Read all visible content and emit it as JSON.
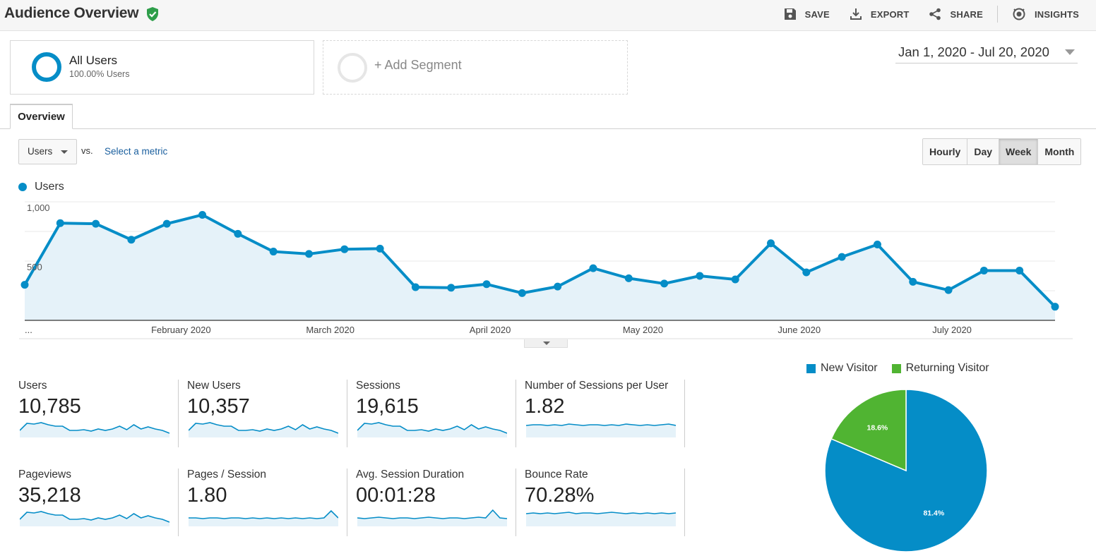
{
  "header": {
    "title": "Audience Overview",
    "actions": {
      "save": "SAVE",
      "export": "EXPORT",
      "share": "SHARE",
      "insights": "INSIGHTS"
    }
  },
  "segments": {
    "all_users": {
      "name": "All Users",
      "sub": "100.00% Users"
    },
    "add_segment": "+ Add Segment"
  },
  "date_range": "Jan 1, 2020 - Jul 20, 2020",
  "tabs": {
    "overview": "Overview"
  },
  "metric_selector": {
    "selected": "Users",
    "vs": "vs.",
    "select_metric": "Select a metric"
  },
  "granularity": {
    "hourly": "Hourly",
    "day": "Day",
    "week": "Week",
    "month": "Month",
    "active": "Week"
  },
  "colors": {
    "primary": "#058dc7",
    "secondary": "#50b432",
    "area_fill": "#e5f2f9"
  },
  "chart_data": [
    {
      "type": "area",
      "legend": "Users",
      "series": [
        {
          "name": "Users",
          "values": [
            300,
            820,
            815,
            680,
            815,
            890,
            730,
            580,
            560,
            600,
            605,
            280,
            275,
            305,
            230,
            285,
            440,
            355,
            310,
            375,
            345,
            650,
            405,
            535,
            640,
            325,
            255,
            420,
            420,
            115
          ]
        }
      ],
      "y_ticks": [
        {
          "value": 1000,
          "label": "1,000"
        },
        {
          "value": 500,
          "label": "500"
        }
      ],
      "ylim": [
        0,
        1000
      ],
      "x_labels": [
        {
          "index": 0,
          "label": "..."
        },
        {
          "index": 4.4,
          "label": "February 2020"
        },
        {
          "index": 8.6,
          "label": "March 2020"
        },
        {
          "index": 13.1,
          "label": "April 2020"
        },
        {
          "index": 17.4,
          "label": "May 2020"
        },
        {
          "index": 21.8,
          "label": "June 2020"
        },
        {
          "index": 26.1,
          "label": "July 2020"
        }
      ],
      "grid": true
    },
    {
      "type": "pie",
      "legend": [
        "New Visitor",
        "Returning Visitor"
      ],
      "slices": [
        {
          "name": "New Visitor",
          "value": 81.4,
          "label": "81.4%",
          "color": "#058dc7"
        },
        {
          "name": "Returning Visitor",
          "value": 18.6,
          "label": "18.6%",
          "color": "#50b432"
        }
      ]
    }
  ],
  "scorecards": [
    {
      "label": "Users",
      "value": "10,785",
      "spark": [
        8,
        18,
        17,
        19,
        16,
        14,
        14,
        8,
        8,
        9,
        7,
        10,
        8,
        10,
        14,
        9,
        16,
        10,
        13,
        10,
        8,
        4
      ]
    },
    {
      "label": "New Users",
      "value": "10,357",
      "spark": [
        8,
        18,
        17,
        19,
        16,
        14,
        14,
        8,
        8,
        9,
        7,
        10,
        8,
        10,
        14,
        9,
        16,
        10,
        13,
        10,
        8,
        4
      ]
    },
    {
      "label": "Sessions",
      "value": "19,615",
      "spark": [
        8,
        18,
        17,
        19,
        16,
        14,
        14,
        8,
        8,
        9,
        7,
        10,
        8,
        10,
        14,
        9,
        16,
        10,
        13,
        10,
        8,
        4
      ]
    },
    {
      "label": "Number of Sessions per User",
      "value": "1.82",
      "spark": [
        15,
        16,
        16,
        15,
        16,
        15,
        17,
        16,
        15,
        16,
        16,
        15,
        16,
        15,
        17,
        16,
        15,
        16,
        15,
        16,
        17,
        15
      ]
    },
    {
      "label": "Pageviews",
      "value": "35,218",
      "spark": [
        8,
        18,
        17,
        19,
        16,
        14,
        14,
        8,
        8,
        9,
        7,
        10,
        8,
        10,
        14,
        9,
        16,
        10,
        13,
        10,
        8,
        4
      ]
    },
    {
      "label": "Pages / Session",
      "value": "1.80",
      "spark": [
        10,
        10,
        9,
        10,
        10,
        9,
        10,
        10,
        9,
        10,
        9,
        10,
        9,
        10,
        9,
        10,
        9,
        10,
        9,
        10,
        20,
        10
      ]
    },
    {
      "label": "Avg. Session Duration",
      "value": "00:01:28",
      "spark": [
        10,
        9,
        10,
        11,
        10,
        9,
        10,
        10,
        9,
        10,
        11,
        10,
        9,
        10,
        10,
        9,
        10,
        11,
        10,
        21,
        10,
        9
      ]
    },
    {
      "label": "Bounce Rate",
      "value": "70.28%",
      "spark": [
        16,
        17,
        16,
        17,
        16,
        17,
        18,
        16,
        17,
        17,
        16,
        17,
        18,
        17,
        16,
        17,
        16,
        17,
        16,
        17,
        16,
        17
      ]
    }
  ]
}
